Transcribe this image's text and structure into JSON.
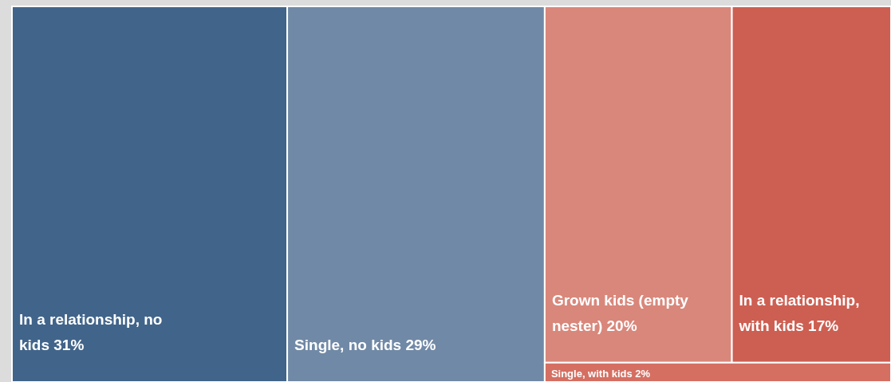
{
  "chart_data": {
    "type": "other",
    "categories": [
      "In a relationship, no kids",
      "Single, no kids",
      "Grown kids (empty nester)",
      "In a relationship, with kids",
      "Single, with kids"
    ],
    "values": [
      31,
      29,
      20,
      17,
      2
    ],
    "value_labels": [
      "31%",
      "29%",
      "20%",
      "17%",
      "2%"
    ],
    "colors": [
      "#41648a",
      "#7089a6",
      "#d9877b",
      "#cd5f52",
      "#d46f62"
    ]
  }
}
